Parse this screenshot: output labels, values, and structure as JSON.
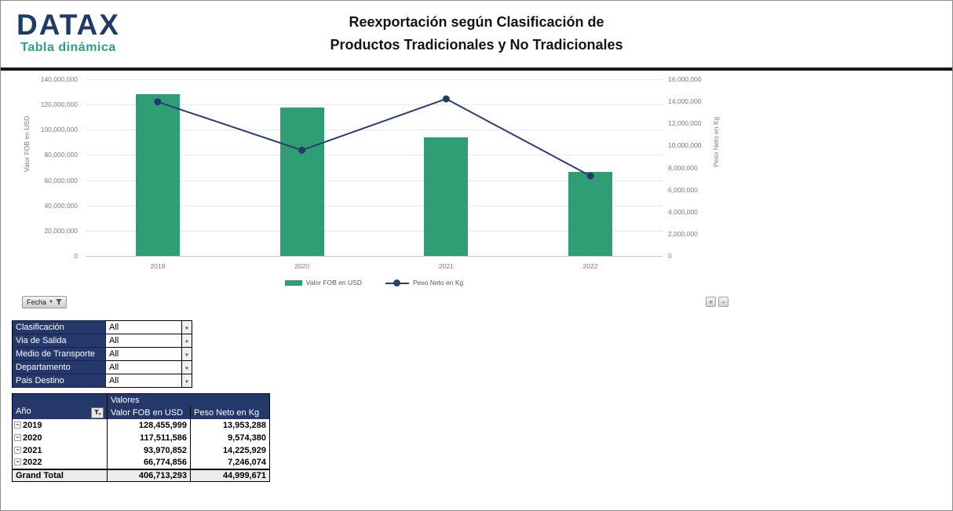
{
  "header": {
    "logo": "DATAX",
    "logo_sub": "Tabla dinámica",
    "title_line1": "Reexportación según Clasificación de",
    "title_line2": "Productos Tradicionales y No Tradicionales"
  },
  "chart_data": {
    "type": "bar",
    "subtype": "combo-bar-line-dual-axis",
    "categories": [
      "2019",
      "2020",
      "2021",
      "2022"
    ],
    "series": [
      {
        "name": "Valor FOB en USD",
        "chart": "bar",
        "axis": "left",
        "color": "#2f9e74",
        "values": [
          128455999,
          117511586,
          93970852,
          66774856
        ]
      },
      {
        "name": "Peso Neto en Kg",
        "chart": "line",
        "axis": "right",
        "color": "#2a3f6f",
        "marker_color": "#233a6b",
        "values": [
          13953288,
          9574380,
          14225929,
          7246074
        ]
      }
    ],
    "left_axis": {
      "label": "Valor FOB en USD",
      "min": 0,
      "max": 140000000,
      "step": 20000000,
      "tick_labels": [
        "0",
        "20,000,000",
        "40,000,000",
        "60,000,000",
        "80,000,000",
        "100,000,000",
        "120,000,000",
        "140,000,000"
      ]
    },
    "right_axis": {
      "label": "Peso Neto en Kg",
      "min": 0,
      "max": 16000000,
      "step": 2000000,
      "tick_labels": [
        "0",
        "2,000,000",
        "4,000,000",
        "6,000,000",
        "8,000,000",
        "10,000,000",
        "12,000,000",
        "14,000,000",
        "16,000,000"
      ]
    },
    "grid": true,
    "legend_position": "bottom",
    "legend": [
      {
        "label": "Valor FOB en USD",
        "marker": "bar",
        "color": "#2f9e74"
      },
      {
        "label": "Peso Neto en Kg",
        "marker": "line-dot",
        "color": "#2a3f6f"
      }
    ]
  },
  "chart_controls": {
    "field_button_label": "Fecha",
    "expand_button": "+",
    "collapse_button": "−"
  },
  "filters": {
    "rows": [
      {
        "label": "Clasificación",
        "value": "All"
      },
      {
        "label": "Via de Salida",
        "value": "All"
      },
      {
        "label": "Medio de Transporte",
        "value": "All"
      },
      {
        "label": "Departamento",
        "value": "All"
      },
      {
        "label": "Pais Destino",
        "value": "All"
      }
    ]
  },
  "pivot_table": {
    "values_header": "Valores",
    "row_header": "Año",
    "col_headers": [
      "Valor FOB en USD",
      "Peso Neto en Kg"
    ],
    "rows": [
      {
        "year": "2019",
        "fob": "128,455,999",
        "peso": "13,953,288"
      },
      {
        "year": "2020",
        "fob": "117,511,586",
        "peso": "9,574,380"
      },
      {
        "year": "2021",
        "fob": "93,970,852",
        "peso": "14,225,929"
      },
      {
        "year": "2022",
        "fob": "66,774,856",
        "peso": "7,246,074"
      }
    ],
    "grand_total": {
      "label": "Grand Total",
      "fob": "406,713,293",
      "peso": "44,999,671"
    }
  },
  "icons": {
    "dropdown_arrow": "▼",
    "collapse_box": "−"
  },
  "colors": {
    "navy_fill": "#24386b",
    "bar_green": "#2f9e74",
    "line_navy": "#2a3f6f",
    "logo_navy": "#1e3a66",
    "logo_teal": "#2ba083"
  }
}
